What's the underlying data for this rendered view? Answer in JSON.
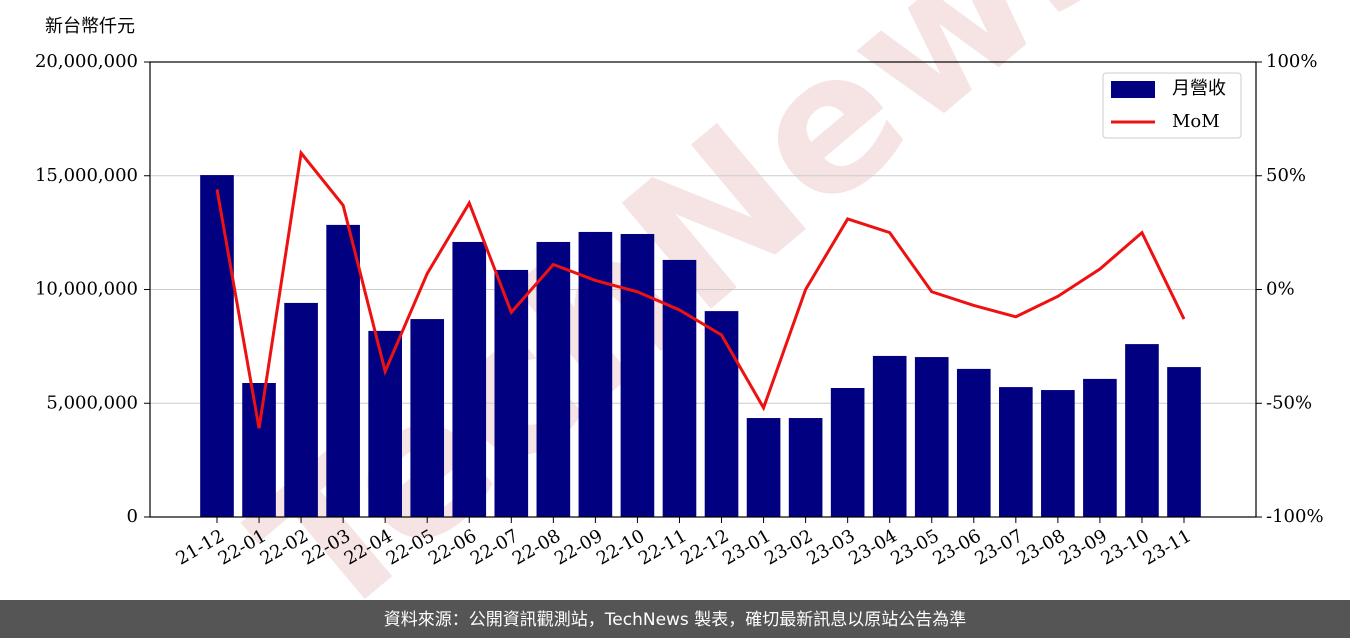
{
  "chart_data": {
    "type": "combo",
    "y_label": "新台幣仟元",
    "watermark": "TechNews",
    "categories": [
      "21-12",
      "22-01",
      "22-02",
      "22-03",
      "22-04",
      "22-05",
      "22-06",
      "22-07",
      "22-08",
      "22-09",
      "22-10",
      "22-11",
      "22-12",
      "23-01",
      "23-02",
      "23-03",
      "23-04",
      "23-05",
      "23-06",
      "23-07",
      "23-08",
      "23-09",
      "23-10",
      "23-11"
    ],
    "series": [
      {
        "name": "月營收",
        "type": "bar",
        "color": "#000080",
        "values": [
          15030000,
          5890000,
          9410000,
          12840000,
          8180000,
          8700000,
          12090000,
          10860000,
          12090000,
          12530000,
          12440000,
          11300000,
          9050000,
          4350000,
          4350000,
          5670000,
          7080000,
          7030000,
          6510000,
          5710000,
          5580000,
          6070000,
          7600000,
          6590000
        ]
      },
      {
        "name": "MoM",
        "type": "line",
        "axis": "y2",
        "color": "#ee1111",
        "values": [
          44,
          -61,
          60,
          37,
          -36,
          7,
          38,
          -10,
          11,
          4,
          -1,
          -9,
          -20,
          -52,
          0,
          31,
          25,
          -1,
          -7,
          -12,
          -3,
          9,
          25,
          -13
        ]
      }
    ],
    "ylim": [
      0,
      20000000
    ],
    "yticks": [
      0,
      {
        "value": 5000000,
        "label": "5,000,000"
      },
      {
        "value": 10000000,
        "label": "10,000,000"
      },
      {
        "value": 15000000,
        "label": "15,000,000"
      },
      {
        "value": 20000000,
        "label": "20,000,000"
      }
    ],
    "y2lim": [
      -100,
      100
    ],
    "y2ticks": [
      {
        "value": -100,
        "label": "-100%"
      },
      {
        "value": -50,
        "label": "-50%"
      },
      {
        "value": 0,
        "label": "0%"
      },
      {
        "value": 50,
        "label": "50%"
      },
      {
        "value": 100,
        "label": "100%"
      }
    ],
    "grid": true,
    "legend": "upper right"
  },
  "footer": "資料來源：公開資訊觀測站，TechNews 製表，確切最新訊息以原站公告為準"
}
